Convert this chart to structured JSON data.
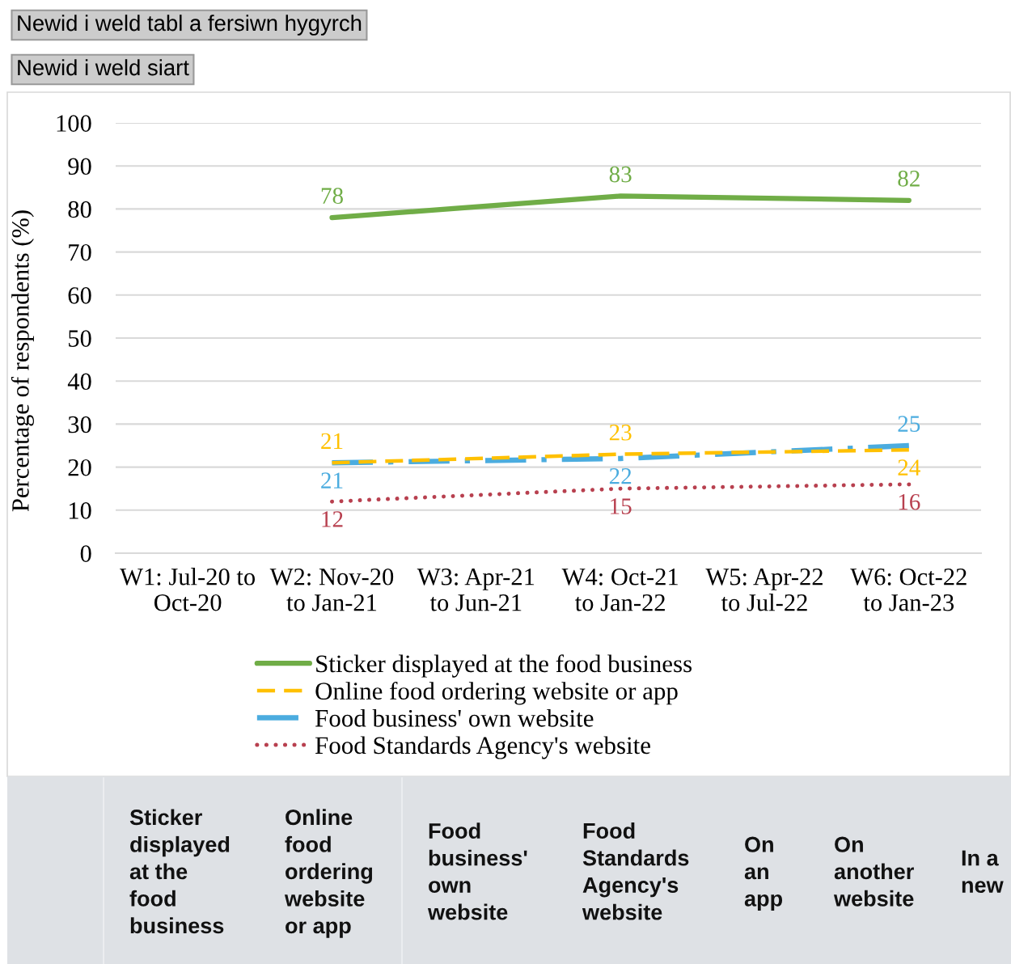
{
  "chart_data": {
    "type": "line",
    "ylabel": "Percentage of respondents (%)",
    "categories": [
      "W1: Jul-20 to Oct-20",
      "W2: Nov-20 to Jan-21",
      "W3: Apr-21 to Jun-21",
      "W4: Oct-21 to Jan-22",
      "W5: Apr-22 to Jul-22",
      "W6: Oct-22 to Jan-23"
    ],
    "series": [
      {
        "name": "Sticker displayed at the food business",
        "color": "#70ad47",
        "line_style": "solid",
        "values": [
          null,
          78,
          null,
          83,
          null,
          82
        ]
      },
      {
        "name": "Online food ordering website or app",
        "color": "#ffc000",
        "line_style": "dashed",
        "values": [
          null,
          21,
          null,
          23,
          null,
          24
        ]
      },
      {
        "name": "Food business' own website",
        "color": "#4bacdf",
        "line_style": "dashdot",
        "values": [
          null,
          21,
          null,
          22,
          null,
          25
        ]
      },
      {
        "name": "Food Standards Agency's website",
        "color": "#b8404f",
        "line_style": "dotted",
        "values": [
          null,
          12,
          null,
          15,
          null,
          16
        ]
      }
    ],
    "ylim": [
      0,
      100
    ],
    "yticks": [
      0,
      10,
      20,
      30,
      40,
      50,
      60,
      70,
      80,
      90,
      100
    ],
    "grid": "y",
    "legend": "bottom",
    "data_labels": true,
    "marker": "none",
    "annotations": [
      "Newid i weld tabl a fersiwn hygyrch",
      "Newid i weld siart",
      "Sticker displayed at the food business",
      "Online food ordering website or app",
      "Food business' own website",
      "Food Standards Agency's website",
      "On an app",
      "On another website",
      "In a new"
    ]
  }
}
